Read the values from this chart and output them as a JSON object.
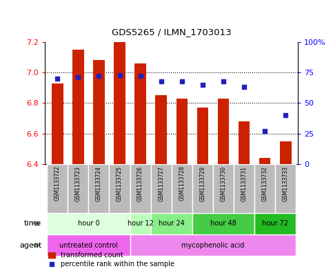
{
  "title": "GDS5265 / ILMN_1703013",
  "samples": [
    "GSM1133722",
    "GSM1133723",
    "GSM1133724",
    "GSM1133725",
    "GSM1133726",
    "GSM1133727",
    "GSM1133728",
    "GSM1133729",
    "GSM1133730",
    "GSM1133731",
    "GSM1133732",
    "GSM1133733"
  ],
  "bar_values": [
    6.93,
    7.15,
    7.08,
    7.2,
    7.06,
    6.85,
    6.83,
    6.77,
    6.83,
    6.68,
    6.44,
    6.55
  ],
  "percentile_values": [
    70,
    71,
    72,
    73,
    72,
    68,
    68,
    65,
    68,
    63,
    27,
    40
  ],
  "ylim_left": [
    6.4,
    7.2
  ],
  "ylim_right": [
    0,
    100
  ],
  "yticks_left": [
    6.4,
    6.6,
    6.8,
    7.0,
    7.2
  ],
  "yticks_right": [
    0,
    25,
    50,
    75,
    100
  ],
  "ytick_labels_right": [
    "0",
    "25",
    "50",
    "75",
    "100%"
  ],
  "bar_color": "#cc2200",
  "dot_color": "#2222bb",
  "time_groups": [
    {
      "label": "hour 0",
      "start": 0,
      "end": 3,
      "color": "#ddffdd"
    },
    {
      "label": "hour 12",
      "start": 4,
      "end": 4,
      "color": "#bbffbb"
    },
    {
      "label": "hour 24",
      "start": 5,
      "end": 6,
      "color": "#88ee88"
    },
    {
      "label": "hour 48",
      "start": 7,
      "end": 9,
      "color": "#44cc44"
    },
    {
      "label": "hour 72",
      "start": 10,
      "end": 11,
      "color": "#22bb22"
    }
  ],
  "agent_groups": [
    {
      "label": "untreated control",
      "start": 0,
      "end": 3,
      "color": "#ee66ee"
    },
    {
      "label": "mycophenolic acid",
      "start": 4,
      "end": 11,
      "color": "#ee88ee"
    }
  ],
  "legend_bar": "transformed count",
  "legend_dot": "percentile rank within the sample",
  "sample_bg": "#bbbbbb",
  "arrow_color": "#888888"
}
